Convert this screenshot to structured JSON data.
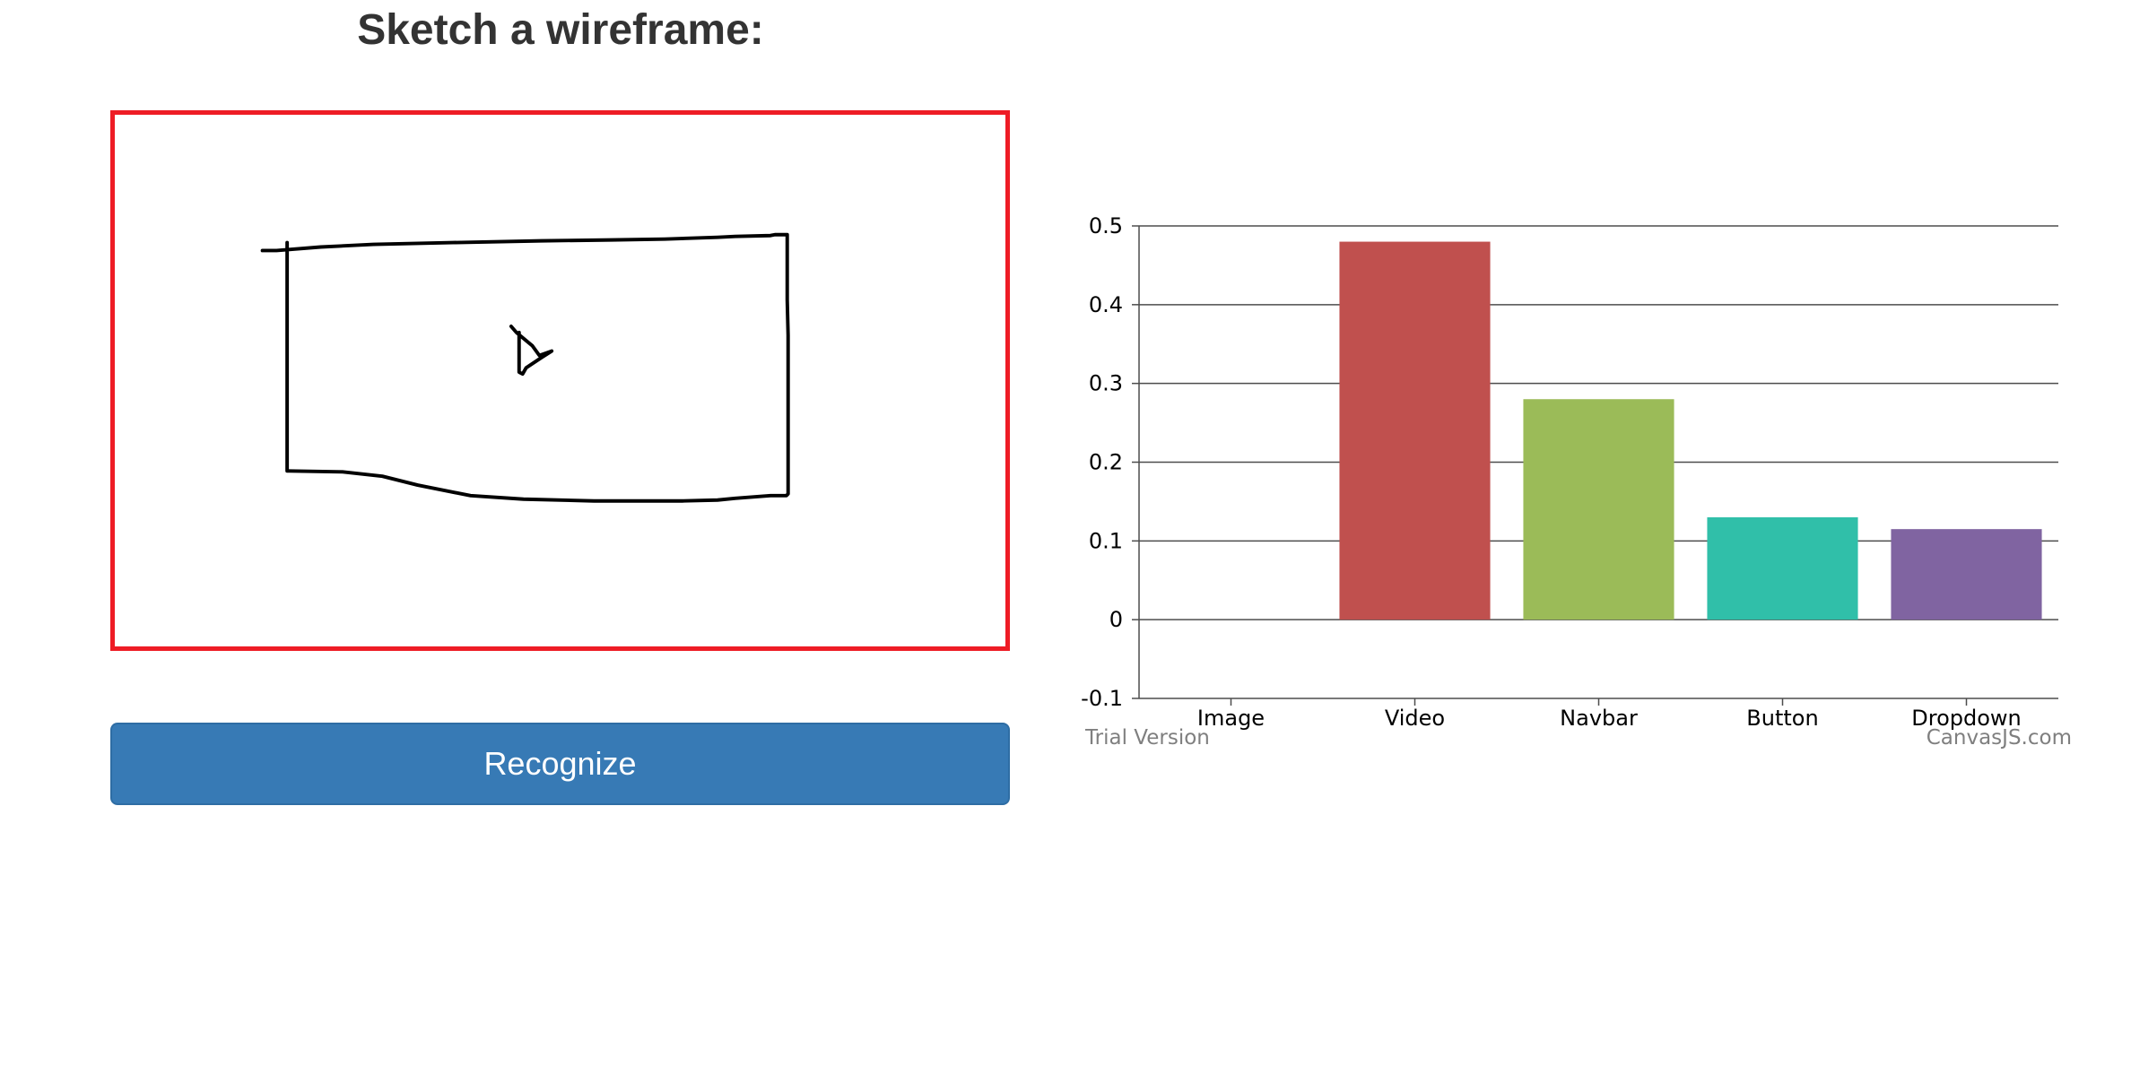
{
  "page": {
    "title": "Sketch a wireframe:"
  },
  "sketch": {
    "border_color": "#ee1c25"
  },
  "recognize_button": {
    "label": "Recognize",
    "color": "#377ab5"
  },
  "chart_data": {
    "type": "bar",
    "categories": [
      "Image",
      "Video",
      "Navbar",
      "Button",
      "Dropdown"
    ],
    "values": [
      0,
      0.48,
      0.28,
      0.13,
      0.115
    ],
    "colors": [
      "#4f81bc",
      "#c0504e",
      "#9bbb58",
      "#30bfa9",
      "#8064a1"
    ],
    "ylim": [
      -0.1,
      0.5
    ],
    "yticks": [
      "0.5",
      "0.4",
      "0.3",
      "0.2",
      "0.1",
      "0",
      "-0.1"
    ],
    "ytick_values": [
      0.5,
      0.4,
      0.3,
      0.2,
      0.1,
      0,
      -0.1
    ],
    "grid": true,
    "xlabel": "",
    "ylabel": "",
    "watermark_left": "Trial Version",
    "watermark_right": "CanvasJS.com"
  }
}
